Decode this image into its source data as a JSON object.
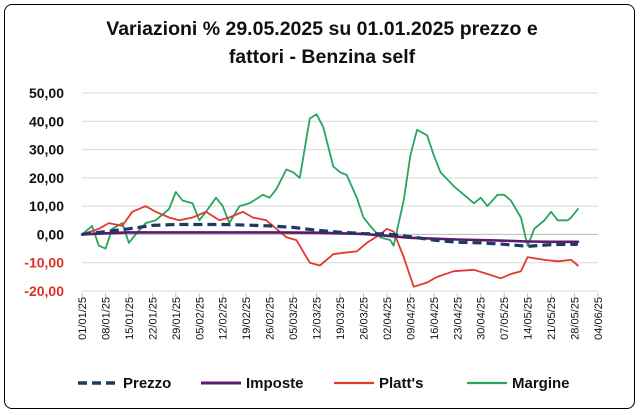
{
  "chart_data": {
    "type": "line",
    "title_line1": "Variazioni % 29.05.2025 su 01.01.2025 prezzo e",
    "title_line2": "fattori - Benzina self",
    "xlabel": "",
    "ylabel": "",
    "ylim": [
      -20,
      50
    ],
    "y_step": 10,
    "y_tick_labels": [
      "50,00",
      "40,00",
      "30,00",
      "20,00",
      "10,00",
      "0,00",
      "-10,00",
      "-20,00"
    ],
    "y_tick_values": [
      50,
      40,
      30,
      20,
      10,
      0,
      -10,
      -20
    ],
    "x_start": "2025-01-01",
    "x_end": "2025-06-04",
    "x_tick_labels": [
      "01/01/25",
      "08/01/25",
      "15/01/25",
      "22/01/25",
      "29/01/25",
      "05/02/25",
      "12/02/25",
      "19/02/25",
      "26/02/25",
      "05/03/25",
      "12/03/25",
      "19/03/25",
      "26/03/25",
      "02/04/25",
      "09/04/25",
      "16/04/25",
      "23/04/25",
      "30/04/25",
      "07/05/25",
      "14/05/25",
      "21/05/25",
      "28/05/25",
      "04/06/25"
    ],
    "grid": "horizontal",
    "legend_position": "bottom",
    "series": [
      {
        "name": "Prezzo",
        "color": "#1f3864",
        "style": "dashed",
        "points": [
          [
            "2025-01-01",
            0.0
          ],
          [
            "2025-01-08",
            1.0
          ],
          [
            "2025-01-15",
            2.0
          ],
          [
            "2025-01-22",
            3.2
          ],
          [
            "2025-01-29",
            3.5
          ],
          [
            "2025-02-05",
            3.5
          ],
          [
            "2025-02-12",
            3.5
          ],
          [
            "2025-02-19",
            3.3
          ],
          [
            "2025-02-26",
            3.0
          ],
          [
            "2025-03-05",
            2.5
          ],
          [
            "2025-03-12",
            1.5
          ],
          [
            "2025-03-19",
            0.8
          ],
          [
            "2025-03-26",
            0.3
          ],
          [
            "2025-04-02",
            0.2
          ],
          [
            "2025-04-09",
            -0.8
          ],
          [
            "2025-04-16",
            -2.0
          ],
          [
            "2025-04-23",
            -2.8
          ],
          [
            "2025-04-30",
            -3.0
          ],
          [
            "2025-05-07",
            -3.5
          ],
          [
            "2025-05-14",
            -4.2
          ],
          [
            "2025-05-21",
            -3.6
          ],
          [
            "2025-05-29",
            -3.5
          ]
        ]
      },
      {
        "name": "Imposte",
        "color": "#5b1a6e",
        "style": "solid",
        "points": [
          [
            "2025-01-01",
            0.0
          ],
          [
            "2025-01-08",
            0.4
          ],
          [
            "2025-01-15",
            0.7
          ],
          [
            "2025-01-22",
            0.7
          ],
          [
            "2025-01-29",
            0.7
          ],
          [
            "2025-02-12",
            0.7
          ],
          [
            "2025-02-26",
            0.7
          ],
          [
            "2025-03-12",
            0.6
          ],
          [
            "2025-03-26",
            0.2
          ],
          [
            "2025-04-02",
            -0.5
          ],
          [
            "2025-04-09",
            -1.2
          ],
          [
            "2025-04-23",
            -1.8
          ],
          [
            "2025-05-07",
            -2.2
          ],
          [
            "2025-05-14",
            -2.5
          ],
          [
            "2025-05-21",
            -2.6
          ],
          [
            "2025-05-29",
            -2.6
          ]
        ]
      },
      {
        "name": "Platt's",
        "color": "#e03a2f",
        "style": "solid",
        "points": [
          [
            "2025-01-01",
            0.0
          ],
          [
            "2025-01-06",
            2.0
          ],
          [
            "2025-01-09",
            4.0
          ],
          [
            "2025-01-13",
            3.0
          ],
          [
            "2025-01-16",
            8.0
          ],
          [
            "2025-01-20",
            10.0
          ],
          [
            "2025-01-23",
            8.0
          ],
          [
            "2025-01-27",
            6.0
          ],
          [
            "2025-01-30",
            5.0
          ],
          [
            "2025-02-03",
            6.0
          ],
          [
            "2025-02-07",
            8.0
          ],
          [
            "2025-02-11",
            5.0
          ],
          [
            "2025-02-14",
            6.0
          ],
          [
            "2025-02-18",
            8.0
          ],
          [
            "2025-02-21",
            6.0
          ],
          [
            "2025-02-25",
            5.0
          ],
          [
            "2025-02-27",
            3.0
          ],
          [
            "2025-03-03",
            -1.0
          ],
          [
            "2025-03-06",
            -2.0
          ],
          [
            "2025-03-10",
            -10.0
          ],
          [
            "2025-03-13",
            -11.0
          ],
          [
            "2025-03-17",
            -7.0
          ],
          [
            "2025-03-20",
            -6.5
          ],
          [
            "2025-03-24",
            -6.0
          ],
          [
            "2025-03-27",
            -3.0
          ],
          [
            "2025-03-31",
            0.0
          ],
          [
            "2025-04-02",
            2.0
          ],
          [
            "2025-04-04",
            1.0
          ],
          [
            "2025-04-07",
            -8.0
          ],
          [
            "2025-04-10",
            -18.5
          ],
          [
            "2025-04-14",
            -17.0
          ],
          [
            "2025-04-17",
            -15.0
          ],
          [
            "2025-04-22",
            -13.0
          ],
          [
            "2025-04-28",
            -12.5
          ],
          [
            "2025-05-02",
            -14.0
          ],
          [
            "2025-05-06",
            -15.5
          ],
          [
            "2025-05-09",
            -14.0
          ],
          [
            "2025-05-12",
            -13.0
          ],
          [
            "2025-05-14",
            -8.0
          ],
          [
            "2025-05-19",
            -9.0
          ],
          [
            "2025-05-23",
            -9.5
          ],
          [
            "2025-05-27",
            -9.0
          ],
          [
            "2025-05-29",
            -11.0
          ]
        ]
      },
      {
        "name": "Margine",
        "color": "#27a55f",
        "style": "solid",
        "points": [
          [
            "2025-01-01",
            0.0
          ],
          [
            "2025-01-04",
            3.0
          ],
          [
            "2025-01-06",
            -4.0
          ],
          [
            "2025-01-08",
            -5.0
          ],
          [
            "2025-01-10",
            2.0
          ],
          [
            "2025-01-13",
            4.0
          ],
          [
            "2025-01-15",
            -3.0
          ],
          [
            "2025-01-17",
            0.0
          ],
          [
            "2025-01-20",
            4.0
          ],
          [
            "2025-01-23",
            5.0
          ],
          [
            "2025-01-27",
            9.0
          ],
          [
            "2025-01-29",
            15.0
          ],
          [
            "2025-01-31",
            12.0
          ],
          [
            "2025-02-03",
            11.0
          ],
          [
            "2025-02-05",
            5.0
          ],
          [
            "2025-02-07",
            8.0
          ],
          [
            "2025-02-10",
            13.0
          ],
          [
            "2025-02-12",
            10.0
          ],
          [
            "2025-02-14",
            4.0
          ],
          [
            "2025-02-17",
            10.0
          ],
          [
            "2025-02-20",
            11.0
          ],
          [
            "2025-02-24",
            14.0
          ],
          [
            "2025-02-26",
            13.0
          ],
          [
            "2025-02-28",
            16.0
          ],
          [
            "2025-03-03",
            23.0
          ],
          [
            "2025-03-05",
            22.0
          ],
          [
            "2025-03-07",
            20.0
          ],
          [
            "2025-03-10",
            41.0
          ],
          [
            "2025-03-12",
            42.5
          ],
          [
            "2025-03-14",
            38.0
          ],
          [
            "2025-03-17",
            24.0
          ],
          [
            "2025-03-19",
            22.0
          ],
          [
            "2025-03-21",
            21.0
          ],
          [
            "2025-03-24",
            13.0
          ],
          [
            "2025-03-26",
            6.0
          ],
          [
            "2025-03-28",
            3.0
          ],
          [
            "2025-03-31",
            -1.0
          ],
          [
            "2025-04-03",
            -2.0
          ],
          [
            "2025-04-04",
            -4.0
          ],
          [
            "2025-04-07",
            12.0
          ],
          [
            "2025-04-09",
            28.0
          ],
          [
            "2025-04-11",
            37.0
          ],
          [
            "2025-04-14",
            35.0
          ],
          [
            "2025-04-16",
            28.0
          ],
          [
            "2025-04-18",
            22.0
          ],
          [
            "2025-04-22",
            17.0
          ],
          [
            "2025-04-25",
            14.0
          ],
          [
            "2025-04-28",
            11.0
          ],
          [
            "2025-04-30",
            13.0
          ],
          [
            "2025-05-02",
            10.0
          ],
          [
            "2025-05-05",
            14.0
          ],
          [
            "2025-05-07",
            14.0
          ],
          [
            "2025-05-09",
            12.0
          ],
          [
            "2025-05-12",
            6.0
          ],
          [
            "2025-05-14",
            -4.0
          ],
          [
            "2025-05-16",
            2.0
          ],
          [
            "2025-05-19",
            5.0
          ],
          [
            "2025-05-21",
            8.0
          ],
          [
            "2025-05-23",
            5.0
          ],
          [
            "2025-05-26",
            5.0
          ],
          [
            "2025-05-27",
            6.0
          ],
          [
            "2025-05-29",
            9.0
          ]
        ]
      }
    ]
  }
}
